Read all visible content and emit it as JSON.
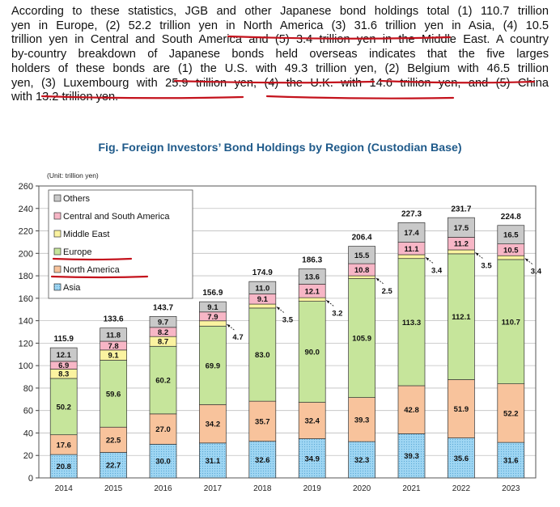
{
  "paragraph": {
    "lines": [
      "According to these statistics, JGB and other Japanese bond holdings total (1) 110.7 trillion",
      "yen in Europe, (2) 52.2 trillion yen in North America (3) 31.6 trillion yen in Asia, (4) 10.5",
      "trillion yen in Central and South America and (5) 3.4 trillion yen in the Middle East. A country",
      "by-country breakdown of Japanese bonds held overseas indicates that the five larges",
      "holders of these bonds are (1) the U.S. with 49.3 trillion yen, (2) Belgium with 46.5 trillion",
      "yen, (3) Luxembourg with 25.9 trillion yen, (4) the U.K. with 14.6 trillion yen, and (5) China",
      "with 13.2 trillion yen."
    ],
    "annotation_color": "#c4121c"
  },
  "chart_data": {
    "type": "bar",
    "stacked": true,
    "title": "Fig. Foreign Investors’ Bond Holdings by Region (Custodian Base)",
    "unit_label": "(Unit: trillion yen)",
    "categories": [
      "2014",
      "2015",
      "2016",
      "2017",
      "2018",
      "2019",
      "2020",
      "2021",
      "2022",
      "2023"
    ],
    "ylim": [
      0,
      260
    ],
    "yticks": [
      0,
      20,
      40,
      60,
      80,
      100,
      120,
      140,
      160,
      180,
      200,
      220,
      240,
      260
    ],
    "series": [
      {
        "name": "Asia",
        "color": "#9fd6f3",
        "values": [
          20.8,
          22.7,
          30.0,
          31.1,
          32.6,
          34.9,
          32.3,
          39.3,
          35.6,
          31.6
        ]
      },
      {
        "name": "North America",
        "color": "#f8c39c",
        "values": [
          17.6,
          22.5,
          27.0,
          34.2,
          35.7,
          32.4,
          39.3,
          42.8,
          51.9,
          52.2
        ]
      },
      {
        "name": "Europe",
        "color": "#c6e59b",
        "values": [
          50.2,
          59.6,
          60.2,
          69.9,
          83.0,
          90.0,
          105.9,
          113.3,
          112.1,
          110.7
        ]
      },
      {
        "name": "Middle East",
        "color": "#fbf3a0",
        "values": [
          8.3,
          9.1,
          8.7,
          4.7,
          3.5,
          3.2,
          2.5,
          3.4,
          3.5,
          3.4
        ]
      },
      {
        "name": "Central and South America",
        "color": "#f7b6c6",
        "values": [
          6.9,
          7.8,
          8.2,
          7.9,
          9.1,
          12.1,
          10.8,
          11.1,
          11.2,
          10.5
        ]
      },
      {
        "name": "Others",
        "color": "#c9c9c9",
        "values": [
          12.1,
          11.8,
          9.7,
          9.1,
          11.0,
          13.6,
          15.5,
          17.4,
          17.5,
          16.5
        ]
      }
    ],
    "totals": [
      115.9,
      133.6,
      143.7,
      156.9,
      174.9,
      186.3,
      206.4,
      227.3,
      231.7,
      224.8
    ],
    "legend_order": [
      "Others",
      "Central and South America",
      "Middle East",
      "Europe",
      "North America",
      "Asia"
    ],
    "legend_position": "top-left"
  }
}
